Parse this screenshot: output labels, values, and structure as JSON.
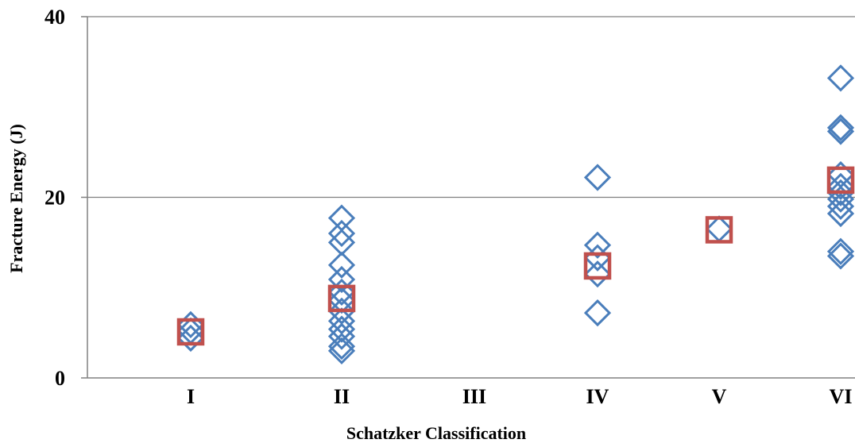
{
  "chart_data": {
    "type": "scatter",
    "title": "",
    "xlabel": "Schatzker Classification",
    "ylabel": "Fracture Energy (J)",
    "categories": [
      "I",
      "II",
      "III",
      "IV",
      "V",
      "VI"
    ],
    "ylim": [
      0,
      40
    ],
    "yticks": [
      0,
      20,
      40
    ],
    "grid": true,
    "legend": "none",
    "series": [
      {
        "marker": "diamond",
        "color": "#4A7EBB",
        "points": [
          {
            "x": "I",
            "y": 4.4
          },
          {
            "x": "I",
            "y": 5.2
          },
          {
            "x": "I",
            "y": 5.9
          },
          {
            "x": "II",
            "y": 3.0
          },
          {
            "x": "II",
            "y": 3.5
          },
          {
            "x": "II",
            "y": 4.6
          },
          {
            "x": "II",
            "y": 5.4
          },
          {
            "x": "II",
            "y": 6.3
          },
          {
            "x": "II",
            "y": 7.4
          },
          {
            "x": "II",
            "y": 8.6
          },
          {
            "x": "II",
            "y": 9.5
          },
          {
            "x": "II",
            "y": 10.9
          },
          {
            "x": "II",
            "y": 12.5
          },
          {
            "x": "II",
            "y": 15.0
          },
          {
            "x": "II",
            "y": 16.0
          },
          {
            "x": "II",
            "y": 17.7
          },
          {
            "x": "IV",
            "y": 7.2
          },
          {
            "x": "IV",
            "y": 11.5
          },
          {
            "x": "IV",
            "y": 13.3
          },
          {
            "x": "IV",
            "y": 14.7
          },
          {
            "x": "IV",
            "y": 22.2
          },
          {
            "x": "V",
            "y": 16.5
          },
          {
            "x": "VI",
            "y": 13.5
          },
          {
            "x": "VI",
            "y": 14.0
          },
          {
            "x": "VI",
            "y": 18.2
          },
          {
            "x": "VI",
            "y": 19.0
          },
          {
            "x": "VI",
            "y": 19.8
          },
          {
            "x": "VI",
            "y": 20.5
          },
          {
            "x": "VI",
            "y": 21.2
          },
          {
            "x": "VI",
            "y": 22.5
          },
          {
            "x": "VI",
            "y": 27.3
          },
          {
            "x": "VI",
            "y": 27.7
          },
          {
            "x": "VI",
            "y": 33.2
          }
        ]
      },
      {
        "marker": "square",
        "color": "#C0504D",
        "points": [
          {
            "x": "I",
            "y": 5.1
          },
          {
            "x": "II",
            "y": 8.8
          },
          {
            "x": "IV",
            "y": 12.4
          },
          {
            "x": "V",
            "y": 16.4
          },
          {
            "x": "VI",
            "y": 21.9
          }
        ]
      }
    ]
  }
}
